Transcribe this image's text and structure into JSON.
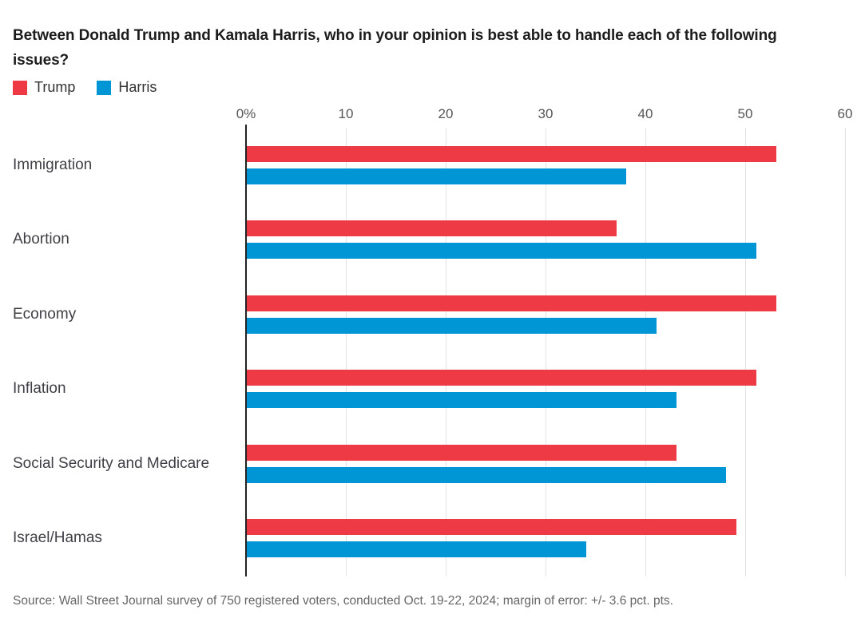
{
  "title": "Between Donald Trump and Kamala Harris, who in your opinion is best able to handle each of the following issues?",
  "legend": [
    {
      "label": "Trump",
      "color": "#ee3a44"
    },
    {
      "label": "Harris",
      "color": "#0096d6"
    }
  ],
  "source": "Source: Wall Street Journal survey of 750 registered voters, conducted Oct. 19-22, 2024; margin of error: +/- 3.6 pct. pts.",
  "chart_data": {
    "type": "bar",
    "orientation": "horizontal",
    "title": "Between Donald Trump and Kamala Harris, who in your opinion is best able to handle each of the following issues?",
    "categories": [
      "Immigration",
      "Abortion",
      "Economy",
      "Inflation",
      "Social Security and Medicare",
      "Israel/Hamas"
    ],
    "series": [
      {
        "name": "Trump",
        "color": "#ee3a44",
        "values": [
          53,
          37,
          53,
          51,
          43,
          49
        ]
      },
      {
        "name": "Harris",
        "color": "#0096d6",
        "values": [
          38,
          51,
          41,
          43,
          48,
          34
        ]
      }
    ],
    "xlim": [
      0,
      60
    ],
    "xticks": [
      0,
      10,
      20,
      30,
      40,
      50,
      60
    ],
    "xtick_labels": [
      "0%",
      "10",
      "20",
      "30",
      "40",
      "50",
      "60"
    ],
    "grid": true,
    "legend_position": "top-left",
    "axis_colors": {
      "grid": "#e3e3e3",
      "axis": "#222222",
      "tick_text": "#555555"
    }
  }
}
